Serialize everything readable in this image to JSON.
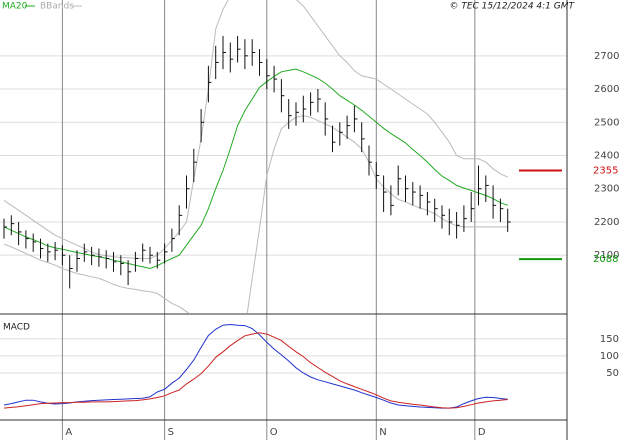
{
  "chart_data": {
    "type": "ohlc",
    "copyright": "© TEC 15/12/2024 4:1 GMT",
    "panel_title": "MACD",
    "ylim": [
      1926,
      2868
    ],
    "yticks": [
      2100,
      2200,
      2300,
      2400,
      2500,
      2600,
      2700
    ],
    "macd_ylim": [
      -88,
      220
    ],
    "macd_yticks": [
      50,
      100,
      150
    ],
    "month_ticks": [
      {
        "value": 8,
        "label": "A"
      },
      {
        "value": 22,
        "label": "S"
      },
      {
        "value": 36,
        "label": "O"
      },
      {
        "value": 51,
        "label": "N"
      },
      {
        "value": 64.5,
        "label": "D"
      }
    ],
    "grid": true,
    "bar_color": "#111111",
    "close": [
      2185,
      2195,
      2170,
      2150,
      2140,
      2120,
      2110,
      2115,
      2100,
      2060,
      2090,
      2110,
      2100,
      2095,
      2090,
      2080,
      2075,
      2050,
      2090,
      2115,
      2100,
      2085,
      2110,
      2150,
      2220,
      2300,
      2380,
      2500,
      2620,
      2680,
      2710,
      2690,
      2720,
      2700,
      2710,
      2680,
      2640,
      2630,
      2580,
      2520,
      2530,
      2540,
      2560,
      2570,
      2510,
      2440,
      2470,
      2490,
      2510,
      2450,
      2380,
      2340,
      2290,
      2250,
      2330,
      2300,
      2290,
      2280,
      2260,
      2240,
      2220,
      2200,
      2190,
      2210,
      2240,
      2300,
      2310,
      2250,
      2240,
      2200
    ],
    "high": [
      2210,
      2220,
      2200,
      2175,
      2165,
      2150,
      2135,
      2140,
      2130,
      2100,
      2115,
      2135,
      2125,
      2120,
      2115,
      2110,
      2100,
      2085,
      2110,
      2135,
      2125,
      2110,
      2135,
      2180,
      2250,
      2340,
      2420,
      2540,
      2670,
      2730,
      2760,
      2740,
      2760,
      2750,
      2750,
      2720,
      2690,
      2670,
      2630,
      2570,
      2560,
      2580,
      2590,
      2600,
      2560,
      2490,
      2500,
      2520,
      2550,
      2500,
      2430,
      2380,
      2340,
      2310,
      2370,
      2340,
      2320,
      2310,
      2290,
      2270,
      2250,
      2240,
      2230,
      2250,
      2290,
      2370,
      2340,
      2310,
      2270,
      2240
    ],
    "low": [
      2150,
      2160,
      2130,
      2120,
      2110,
      2090,
      2080,
      2085,
      2070,
      2000,
      2050,
      2080,
      2070,
      2065,
      2060,
      2050,
      2040,
      2010,
      2050,
      2080,
      2075,
      2060,
      2075,
      2110,
      2160,
      2240,
      2320,
      2440,
      2560,
      2630,
      2660,
      2650,
      2680,
      2660,
      2670,
      2640,
      2600,
      2590,
      2530,
      2480,
      2490,
      2500,
      2520,
      2530,
      2460,
      2410,
      2430,
      2450,
      2470,
      2410,
      2340,
      2300,
      2230,
      2220,
      2280,
      2260,
      2250,
      2240,
      2220,
      2200,
      2180,
      2160,
      2150,
      2170,
      2200,
      2250,
      2260,
      2210,
      2200,
      2170
    ],
    "series": [
      {
        "name": "MA20",
        "color": "#22aa22",
        "values": [
          2185,
          2175,
          2165,
          2155,
          2147,
          2138,
          2128,
          2122,
          2118,
          2113,
          2108,
          2104,
          2099,
          2095,
          2091,
          2085,
          2080,
          2075,
          2070,
          2065,
          2060,
          2068,
          2080,
          2090,
          2100,
          2130,
          2160,
          2190,
          2240,
          2300,
          2355,
          2420,
          2490,
          2535,
          2570,
          2605,
          2622,
          2638,
          2652,
          2656,
          2660,
          2652,
          2642,
          2632,
          2618,
          2600,
          2580,
          2566,
          2552,
          2536,
          2518,
          2500,
          2482,
          2466,
          2452,
          2438,
          2418,
          2400,
          2380,
          2358,
          2338,
          2325,
          2310,
          2302,
          2295,
          2287,
          2280,
          2270,
          2258,
          2250
        ]
      },
      {
        "name": "BBands",
        "color": "#bbbbbb",
        "values": [
          2265,
          2250,
          2235,
          2220,
          2205,
          2190,
          2175,
          2160,
          2150,
          2140,
          2130,
          2120,
          2110,
          2102,
          2098,
          2095,
          2093,
          2092,
          2091,
          2090,
          2090,
          2100,
          2120,
          2145,
          2170,
          2200,
          2330,
          2450,
          2600,
          2780,
          2840,
          2880,
          2900,
          2910,
          2915,
          2915,
          2910,
          2905,
          2900,
          2890,
          2870,
          2850,
          2820,
          2790,
          2760,
          2730,
          2700,
          2680,
          2655,
          2640,
          2635,
          2630,
          2615,
          2600,
          2585,
          2570,
          2555,
          2540,
          2525,
          2500,
          2470,
          2440,
          2400,
          2390,
          2390,
          2390,
          2380,
          2360,
          2345,
          2335
        ],
        "lower": [
          2133,
          2125,
          2115,
          2105,
          2095,
          2085,
          2078,
          2070,
          2060,
          2052,
          2045,
          2040,
          2035,
          2030,
          2022,
          2012,
          2005,
          2000,
          1997,
          1993,
          1990,
          1985,
          1970,
          1955,
          1945,
          1930,
          1915,
          1900,
          1885,
          1870,
          1860,
          1855,
          1860,
          1875,
          2030,
          2180,
          2340,
          2420,
          2480,
          2500,
          2515,
          2520,
          2515,
          2505,
          2495,
          2485,
          2470,
          2455,
          2440,
          2420,
          2380,
          2330,
          2305,
          2285,
          2268,
          2260,
          2250,
          2242,
          2235,
          2225,
          2210,
          2198,
          2188,
          2185,
          2185,
          2185,
          2185,
          2185,
          2185,
          2185
        ]
      }
    ],
    "macd_series": [
      {
        "color": "#2233cc",
        "values": [
          -44,
          -40,
          -35,
          -30,
          -30,
          -35,
          -39,
          -41,
          -40,
          -38,
          -35,
          -33,
          -31,
          -30,
          -29,
          -28,
          -27,
          -26,
          -25,
          -24,
          -20,
          -6,
          2,
          20,
          35,
          60,
          88,
          125,
          160,
          178,
          190,
          192,
          190,
          189,
          180,
          162,
          140,
          120,
          103,
          85,
          65,
          50,
          38,
          30,
          24,
          18,
          12,
          6,
          0,
          -8,
          -15,
          -22,
          -30,
          -38,
          -44,
          -46,
          -48,
          -50,
          -51,
          -52,
          -53,
          -53,
          -50,
          -40,
          -32,
          -25,
          -21,
          -22,
          -25,
          -27
        ]
      },
      {
        "color": "#cc2222",
        "values": [
          -53,
          -51,
          -49,
          -46,
          -43,
          -40,
          -39,
          -38,
          -37,
          -37,
          -36,
          -36,
          -35,
          -35,
          -35,
          -34,
          -33,
          -32,
          -31,
          -29,
          -26,
          -22,
          -17,
          -8,
          0,
          18,
          32,
          48,
          70,
          96,
          112,
          130,
          145,
          159,
          164,
          168,
          164,
          155,
          145,
          128,
          112,
          98,
          80,
          66,
          52,
          40,
          27,
          18,
          10,
          2,
          -6,
          -14,
          -24,
          -32,
          -36,
          -39,
          -42,
          -44,
          -47,
          -50,
          -52,
          -53,
          -52,
          -48,
          -43,
          -38,
          -35,
          -32,
          -30,
          -28
        ]
      }
    ],
    "levels": [
      {
        "value": 2355,
        "color": "#cc1111"
      },
      {
        "value": 2088,
        "color": "#119911"
      }
    ]
  }
}
